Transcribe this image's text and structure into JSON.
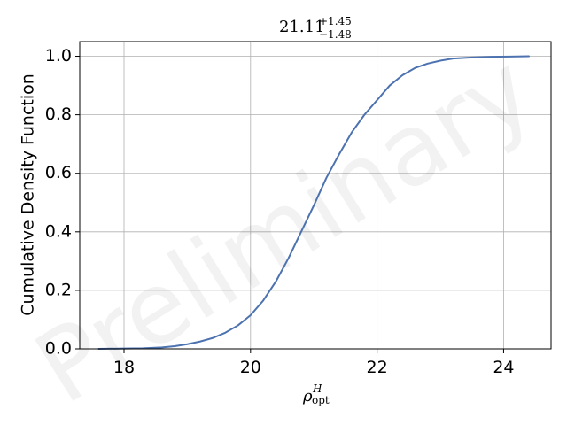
{
  "chart_data": {
    "type": "line",
    "title": {
      "base": "21.11",
      "upper": "+1.45",
      "lower": "−1.48"
    },
    "xlabel": {
      "base": "ρ",
      "sup": "H",
      "sub": "opt"
    },
    "ylabel": "Cumulative Density Function",
    "watermark": "Preliminary",
    "xlim": [
      17.3,
      24.75
    ],
    "ylim": [
      0.0,
      1.05
    ],
    "xticks": [
      18,
      20,
      22,
      24
    ],
    "yticks": [
      0.0,
      0.2,
      0.4,
      0.6,
      0.8,
      1.0
    ],
    "xtick_labels": [
      "18",
      "20",
      "22",
      "24"
    ],
    "ytick_labels": [
      "0.0",
      "0.2",
      "0.4",
      "0.6",
      "0.8",
      "1.0"
    ],
    "grid": true,
    "line_color": "#4c72b0",
    "series": [
      {
        "x": [
          17.6,
          18.0,
          18.3,
          18.6,
          18.8,
          19.0,
          19.2,
          19.4,
          19.6,
          19.8,
          20.0,
          20.2,
          20.4,
          20.6,
          20.8,
          21.0,
          21.2,
          21.4,
          21.6,
          21.8,
          22.0,
          22.2,
          22.4,
          22.6,
          22.8,
          23.0,
          23.2,
          23.5,
          23.8,
          24.1,
          24.4
        ],
        "y": [
          0.0,
          0.001,
          0.002,
          0.005,
          0.009,
          0.016,
          0.025,
          0.037,
          0.055,
          0.08,
          0.115,
          0.165,
          0.23,
          0.31,
          0.4,
          0.49,
          0.585,
          0.665,
          0.74,
          0.8,
          0.85,
          0.9,
          0.935,
          0.96,
          0.975,
          0.985,
          0.992,
          0.996,
          0.998,
          0.999,
          1.0
        ]
      }
    ]
  }
}
